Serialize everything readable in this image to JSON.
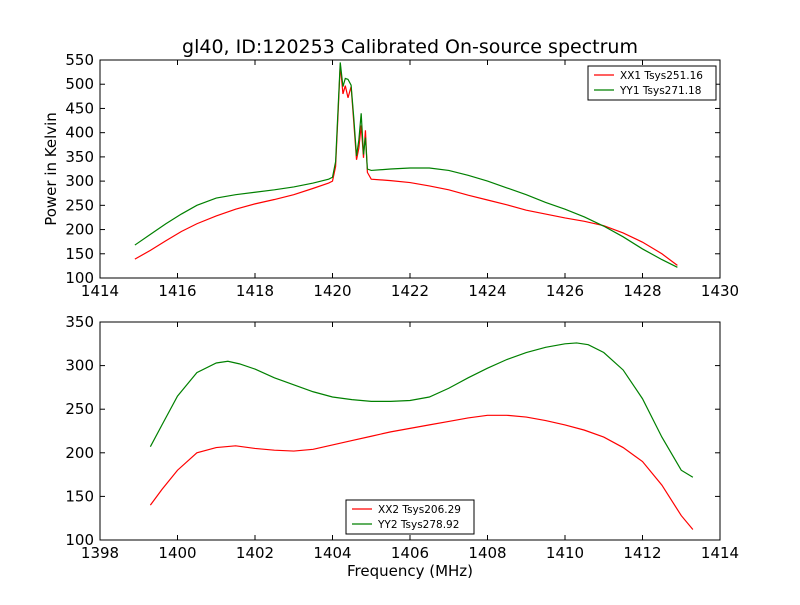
{
  "figure_title": "gl40, ID:120253 Calibrated On-source spectrum",
  "chart_data": [
    {
      "type": "line",
      "title": "gl40, ID:120253 Calibrated On-source spectrum",
      "xlabel": "",
      "ylabel": "Power in Kelvin",
      "xlim": [
        1414,
        1430
      ],
      "ylim": [
        100,
        550
      ],
      "xticks": [
        1414,
        1416,
        1418,
        1420,
        1422,
        1424,
        1426,
        1428,
        1430
      ],
      "yticks": [
        100,
        150,
        200,
        250,
        300,
        350,
        400,
        450,
        500,
        550
      ],
      "grid": false,
      "legend_position": "top-right",
      "series": [
        {
          "name": "XX1 Tsys251.16",
          "color": "#ff0000",
          "points": [
            [
              1414.9,
              139
            ],
            [
              1415.3,
              157
            ],
            [
              1415.7,
              177
            ],
            [
              1416.1,
              196
            ],
            [
              1416.5,
              212
            ],
            [
              1417.0,
              228
            ],
            [
              1417.5,
              242
            ],
            [
              1418.0,
              253
            ],
            [
              1418.5,
              262
            ],
            [
              1419.0,
              272
            ],
            [
              1419.5,
              285
            ],
            [
              1419.9,
              296
            ],
            [
              1420.0,
              300
            ],
            [
              1420.08,
              330
            ],
            [
              1420.15,
              450
            ],
            [
              1420.2,
              540
            ],
            [
              1420.27,
              480
            ],
            [
              1420.33,
              497
            ],
            [
              1420.4,
              472
            ],
            [
              1420.48,
              495
            ],
            [
              1420.55,
              420
            ],
            [
              1420.62,
              344
            ],
            [
              1420.68,
              368
            ],
            [
              1420.74,
              415
            ],
            [
              1420.8,
              348
            ],
            [
              1420.85,
              405
            ],
            [
              1420.9,
              318
            ],
            [
              1421.0,
              304
            ],
            [
              1421.5,
              301
            ],
            [
              1422.0,
              297
            ],
            [
              1422.5,
              290
            ],
            [
              1423.0,
              282
            ],
            [
              1423.5,
              271
            ],
            [
              1424.0,
              261
            ],
            [
              1424.5,
              251
            ],
            [
              1425.0,
              240
            ],
            [
              1425.5,
              232
            ],
            [
              1426.0,
              224
            ],
            [
              1426.5,
              217
            ],
            [
              1427.0,
              208
            ],
            [
              1427.5,
              193
            ],
            [
              1428.0,
              174
            ],
            [
              1428.5,
              150
            ],
            [
              1428.9,
              126
            ]
          ]
        },
        {
          "name": "YY1 Tsys271.18",
          "color": "#008000",
          "points": [
            [
              1414.9,
              168
            ],
            [
              1415.3,
              190
            ],
            [
              1415.7,
              212
            ],
            [
              1416.1,
              232
            ],
            [
              1416.5,
              250
            ],
            [
              1417.0,
              265
            ],
            [
              1417.5,
              272
            ],
            [
              1418.0,
              277
            ],
            [
              1418.5,
              282
            ],
            [
              1419.0,
              288
            ],
            [
              1419.5,
              296
            ],
            [
              1419.9,
              304
            ],
            [
              1420.0,
              308
            ],
            [
              1420.08,
              340
            ],
            [
              1420.15,
              460
            ],
            [
              1420.2,
              545
            ],
            [
              1420.27,
              495
            ],
            [
              1420.33,
              512
            ],
            [
              1420.4,
              510
            ],
            [
              1420.48,
              498
            ],
            [
              1420.55,
              430
            ],
            [
              1420.62,
              352
            ],
            [
              1420.68,
              385
            ],
            [
              1420.74,
              440
            ],
            [
              1420.8,
              355
            ],
            [
              1420.85,
              390
            ],
            [
              1420.9,
              325
            ],
            [
              1421.0,
              322
            ],
            [
              1421.5,
              325
            ],
            [
              1422.0,
              327
            ],
            [
              1422.5,
              327
            ],
            [
              1423.0,
              322
            ],
            [
              1423.5,
              312
            ],
            [
              1424.0,
              300
            ],
            [
              1424.5,
              286
            ],
            [
              1425.0,
              272
            ],
            [
              1425.5,
              256
            ],
            [
              1426.0,
              242
            ],
            [
              1426.5,
              226
            ],
            [
              1427.0,
              207
            ],
            [
              1427.5,
              185
            ],
            [
              1428.0,
              160
            ],
            [
              1428.5,
              138
            ],
            [
              1428.9,
              122
            ]
          ]
        }
      ]
    },
    {
      "type": "line",
      "title": "",
      "xlabel": "Frequency (MHz)",
      "ylabel": "",
      "xlim": [
        1398,
        1414
      ],
      "ylim": [
        100,
        350
      ],
      "xticks": [
        1398,
        1400,
        1402,
        1404,
        1406,
        1408,
        1410,
        1412,
        1414
      ],
      "yticks": [
        100,
        150,
        200,
        250,
        300,
        350
      ],
      "grid": false,
      "legend_position": "bottom-center",
      "series": [
        {
          "name": "XX2 Tsys206.29",
          "color": "#ff0000",
          "points": [
            [
              1399.3,
              140
            ],
            [
              1399.6,
              158
            ],
            [
              1400.0,
              180
            ],
            [
              1400.5,
              200
            ],
            [
              1401.0,
              206
            ],
            [
              1401.5,
              208
            ],
            [
              1402.0,
              205
            ],
            [
              1402.5,
              203
            ],
            [
              1403.0,
              202
            ],
            [
              1403.5,
              204
            ],
            [
              1404.0,
              209
            ],
            [
              1404.5,
              214
            ],
            [
              1405.0,
              219
            ],
            [
              1405.5,
              224
            ],
            [
              1406.0,
              228
            ],
            [
              1406.5,
              232
            ],
            [
              1407.0,
              236
            ],
            [
              1407.5,
              240
            ],
            [
              1408.0,
              243
            ],
            [
              1408.5,
              243
            ],
            [
              1409.0,
              241
            ],
            [
              1409.5,
              237
            ],
            [
              1410.0,
              232
            ],
            [
              1410.5,
              226
            ],
            [
              1411.0,
              218
            ],
            [
              1411.5,
              206
            ],
            [
              1412.0,
              190
            ],
            [
              1412.5,
              163
            ],
            [
              1413.0,
              128
            ],
            [
              1413.3,
              112
            ]
          ]
        },
        {
          "name": "YY2 Tsys278.92",
          "color": "#008000",
          "points": [
            [
              1399.3,
              207
            ],
            [
              1399.6,
              232
            ],
            [
              1400.0,
              265
            ],
            [
              1400.5,
              292
            ],
            [
              1401.0,
              303
            ],
            [
              1401.3,
              305
            ],
            [
              1401.6,
              302
            ],
            [
              1402.0,
              296
            ],
            [
              1402.5,
              286
            ],
            [
              1403.0,
              278
            ],
            [
              1403.5,
              270
            ],
            [
              1404.0,
              264
            ],
            [
              1404.5,
              261
            ],
            [
              1405.0,
              259
            ],
            [
              1405.5,
              259
            ],
            [
              1406.0,
              260
            ],
            [
              1406.5,
              264
            ],
            [
              1407.0,
              274
            ],
            [
              1407.5,
              286
            ],
            [
              1408.0,
              297
            ],
            [
              1408.5,
              307
            ],
            [
              1409.0,
              315
            ],
            [
              1409.5,
              321
            ],
            [
              1410.0,
              325
            ],
            [
              1410.3,
              326
            ],
            [
              1410.6,
              324
            ],
            [
              1411.0,
              315
            ],
            [
              1411.5,
              295
            ],
            [
              1412.0,
              262
            ],
            [
              1412.5,
              218
            ],
            [
              1413.0,
              180
            ],
            [
              1413.3,
              172
            ]
          ]
        }
      ]
    }
  ]
}
